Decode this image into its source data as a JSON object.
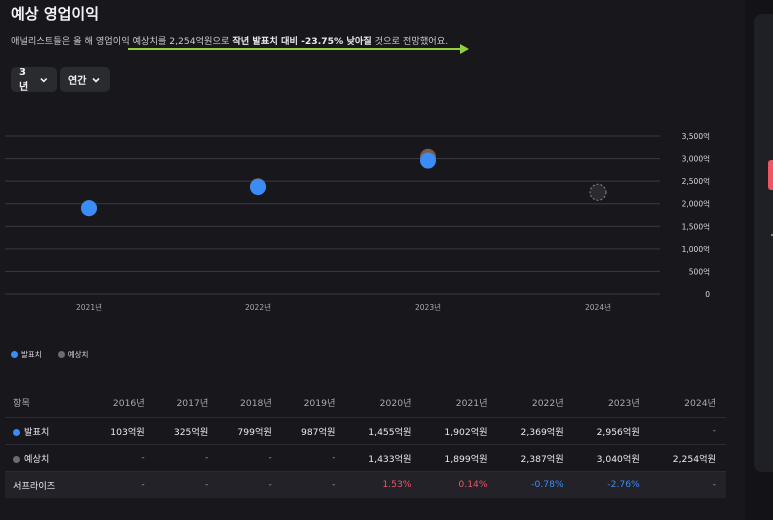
{
  "title": "예상 영업이익",
  "subtitle": {
    "pre": "애널리스트들은 올 해 영업이익 예상치를 2,254억원으로 ",
    "bold": "작년 발표치 대비 -23.75% 낮아질",
    "post": " 것으로 전망했어요."
  },
  "controls": {
    "period": "3년",
    "frequency": "연간"
  },
  "colors": {
    "actual": "#3b8cf6",
    "estimate": "#6b6b75",
    "positive": "#f05563",
    "negative": "#3b8cf6",
    "arrow": "#8ed13a"
  },
  "chart_data": {
    "type": "scatter",
    "categories": [
      "2021년",
      "2022년",
      "2023년",
      "2024년"
    ],
    "y_ticks": [
      "3,500억",
      "3,000억",
      "2,500억",
      "2,000억",
      "1,500억",
      "1,000억",
      "500억",
      "0"
    ],
    "ylim": [
      0,
      3500
    ],
    "unit": "억원",
    "series": [
      {
        "name": "발표치",
        "values": [
          1902,
          2369,
          2956,
          null
        ]
      },
      {
        "name": "예상치",
        "values": [
          1899,
          2387,
          3040,
          2254
        ]
      }
    ],
    "legend_position": "bottom-left",
    "grid": true
  },
  "legend": {
    "actual": "발표치",
    "estimate": "예상치"
  },
  "table": {
    "header": [
      "항목",
      "2016년",
      "2017년",
      "2018년",
      "2019년",
      "2020년",
      "2021년",
      "2022년",
      "2023년",
      "2024년"
    ],
    "rows": [
      {
        "label": "발표치",
        "cells": [
          "103억원",
          "325억원",
          "799억원",
          "987억원",
          "1,455억원",
          "1,902억원",
          "2,369억원",
          "2,956억원",
          "-"
        ]
      },
      {
        "label": "예상치",
        "cells": [
          "-",
          "-",
          "-",
          "-",
          "1,433억원",
          "1,899억원",
          "2,387억원",
          "3,040억원",
          "2,254억원"
        ]
      },
      {
        "label": "서프라이즈",
        "cells": [
          "-",
          "-",
          "-",
          "-",
          "1.53%",
          "0.14%",
          "-0.78%",
          "-2.76%",
          "-"
        ]
      }
    ]
  }
}
